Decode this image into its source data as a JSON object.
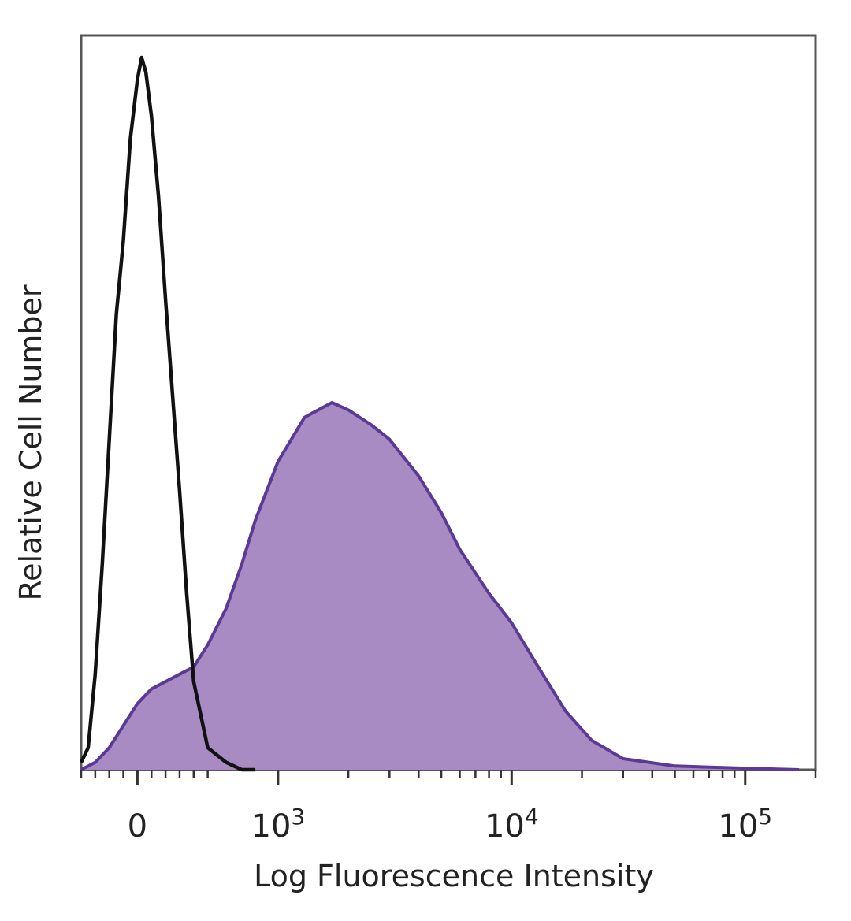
{
  "chart_data": {
    "type": "area",
    "title": "",
    "xlabel": "Log Fluorescence Intensity",
    "ylabel": "Relative Cell Number",
    "x_scale": "biexponential",
    "xlim": [
      -400,
      200000
    ],
    "ylim": [
      0,
      100
    ],
    "grid": false,
    "legend": "none",
    "x_ticks": [
      {
        "value": 0,
        "base": "0",
        "exp": ""
      },
      {
        "value": 1000,
        "base": "10",
        "exp": "3"
      },
      {
        "value": 10000,
        "base": "10",
        "exp": "4"
      },
      {
        "value": 100000,
        "base": "10",
        "exp": "5"
      }
    ],
    "series": [
      {
        "style": "line",
        "color": "#111111",
        "x": [
          -400,
          -350,
          -300,
          -250,
          -200,
          -150,
          -100,
          -50,
          0,
          30,
          60,
          100,
          150,
          200,
          250,
          300,
          350,
          400,
          500,
          600,
          700,
          800
        ],
        "y": [
          1,
          3,
          13,
          28,
          45,
          62,
          72,
          86,
          94,
          97,
          95,
          89,
          78,
          64,
          51,
          38,
          24,
          12,
          3,
          1,
          0,
          0
        ]
      },
      {
        "style": "filled",
        "color": "#5b3a96",
        "fill": "#a98bc4",
        "x": [
          -400,
          -300,
          -200,
          -100,
          0,
          100,
          200,
          300,
          400,
          500,
          600,
          700,
          800,
          1000,
          1300,
          1700,
          2000,
          2500,
          3000,
          4000,
          5000,
          6000,
          8000,
          10000,
          13000,
          17000,
          22000,
          30000,
          50000,
          100000,
          170000
        ],
        "y": [
          0,
          1,
          3,
          6,
          9,
          11,
          12,
          13,
          14,
          17,
          22,
          28,
          34,
          42,
          48,
          50,
          49,
          47,
          45,
          40,
          35,
          30,
          24,
          20,
          14,
          8,
          4,
          1.5,
          0.5,
          0.2,
          0
        ]
      }
    ]
  }
}
